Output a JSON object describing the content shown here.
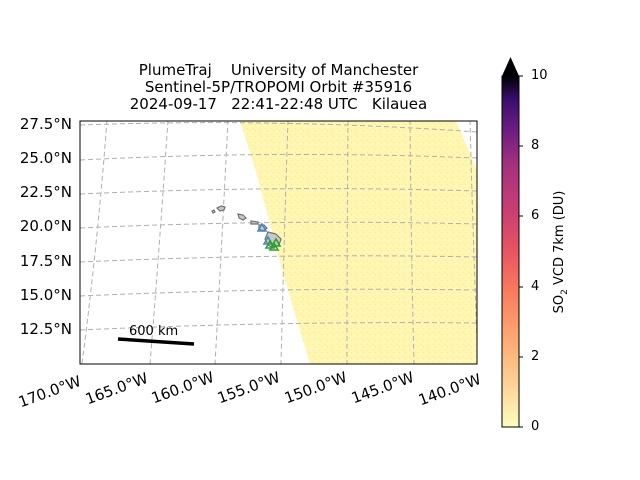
{
  "title": {
    "line1": "PlumeTraj    University of Manchester",
    "line2": "Sentinel-5P/TROPOMI Orbit #35916",
    "line3": "2024-09-17   22:41-22:48 UTC   Kilauea"
  },
  "lat_labels": [
    "27.5°N",
    "25.0°N",
    "22.5°N",
    "20.0°N",
    "17.5°N",
    "15.0°N",
    "12.5°N"
  ],
  "lon_labels": [
    "170.0°W",
    "165.0°W",
    "160.0°W",
    "155.0°W",
    "150.0°W",
    "145.0°W",
    "140.0°W"
  ],
  "scale_bar": {
    "label": "600 km"
  },
  "colorbar": {
    "label_main": "SO",
    "label_sub": "2",
    "label_rest": " VCD 7km (DU)",
    "ticks": [
      "0",
      "2",
      "4",
      "6",
      "8",
      "10"
    ],
    "min": 0,
    "max": 10,
    "extend": "max",
    "colormap": "magma_r"
  },
  "colors": {
    "swath_fill": "#fff6b0",
    "gridline": "#b0b0b0",
    "coast": "#808080",
    "volcano_marker": "#2ca02c",
    "other_marker": "#4a86c5"
  }
}
